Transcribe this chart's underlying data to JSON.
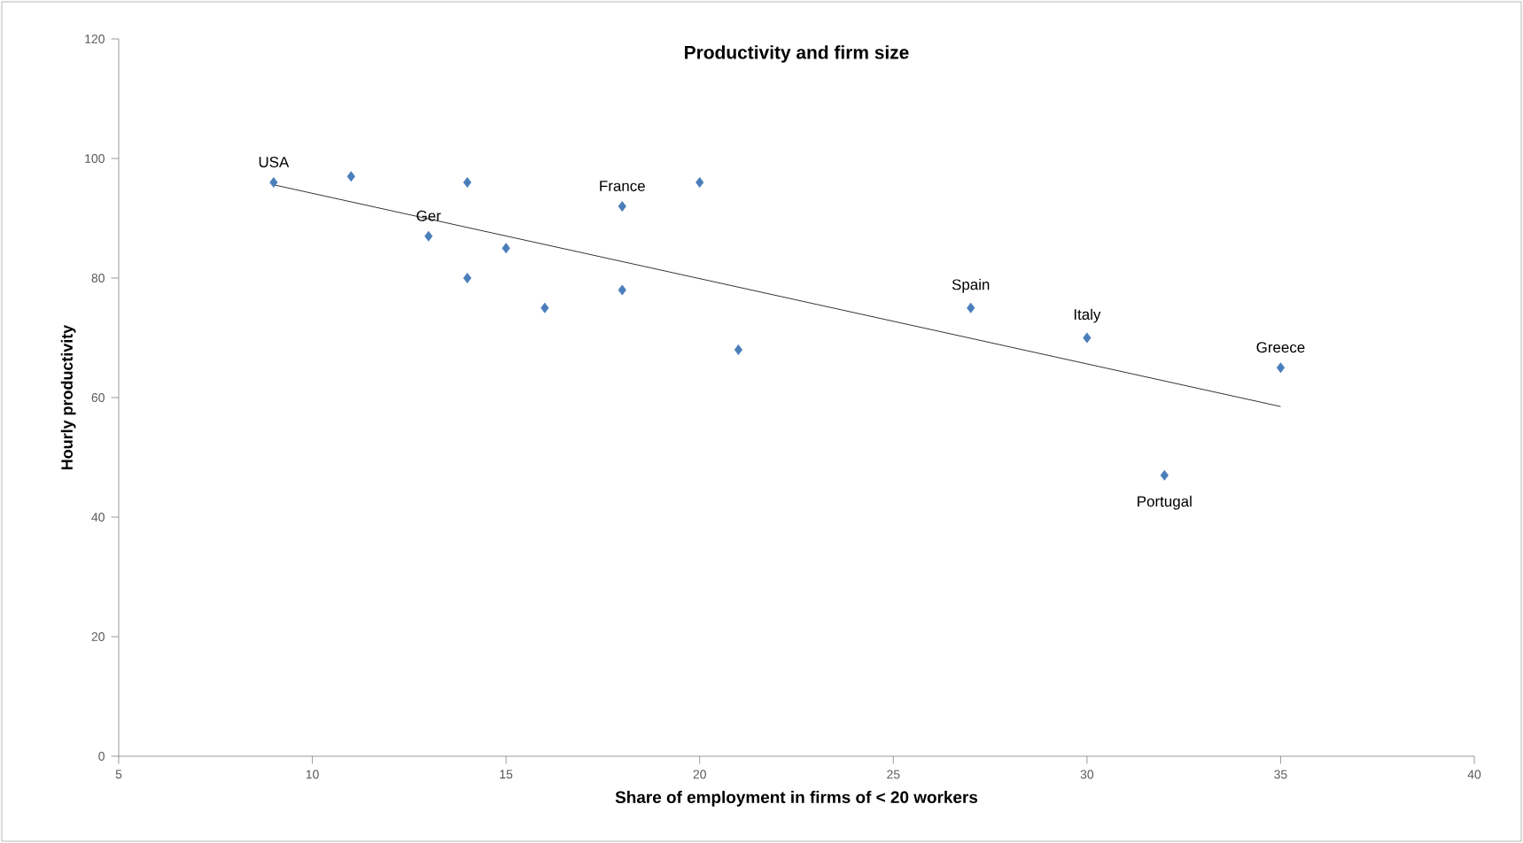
{
  "chart_data": {
    "type": "scatter",
    "title": "Productivity and firm size",
    "xlabel": "Share of employment in firms of < 20 workers",
    "ylabel": "Hourly productivity",
    "xlim": [
      5,
      40
    ],
    "xticks": [
      5,
      10,
      15,
      20,
      25,
      30,
      35,
      40
    ],
    "ylim": [
      0,
      120
    ],
    "yticks": [
      0,
      20,
      40,
      60,
      80,
      100,
      120
    ],
    "grid": false,
    "series": [
      {
        "marker": "diamond",
        "color": "#4a7ebb",
        "x": [
          9,
          11,
          14,
          13,
          15,
          14,
          16,
          18,
          18,
          20,
          21,
          27,
          30,
          35,
          32
        ],
        "values": [
          96,
          97,
          96,
          87,
          85,
          80,
          75,
          92,
          78,
          96,
          68,
          75,
          70,
          65,
          47
        ]
      },
      {
        "type": "line",
        "marker": "none",
        "color": "#000000",
        "x": [
          9,
          35
        ],
        "values": [
          95.6,
          58.5
        ]
      }
    ],
    "annotations": [
      {
        "text": "USA",
        "x": 9,
        "y": 96
      },
      {
        "text": "Ger",
        "x": 13,
        "y": 87
      },
      {
        "text": "France",
        "x": 18,
        "y": 92
      },
      {
        "text": "Spain",
        "x": 27,
        "y": 75
      },
      {
        "text": "Italy",
        "x": 30,
        "y": 70
      },
      {
        "text": "Greece",
        "x": 35,
        "y": 65
      },
      {
        "text": "Portugal",
        "x": 32,
        "y": 47
      }
    ]
  }
}
